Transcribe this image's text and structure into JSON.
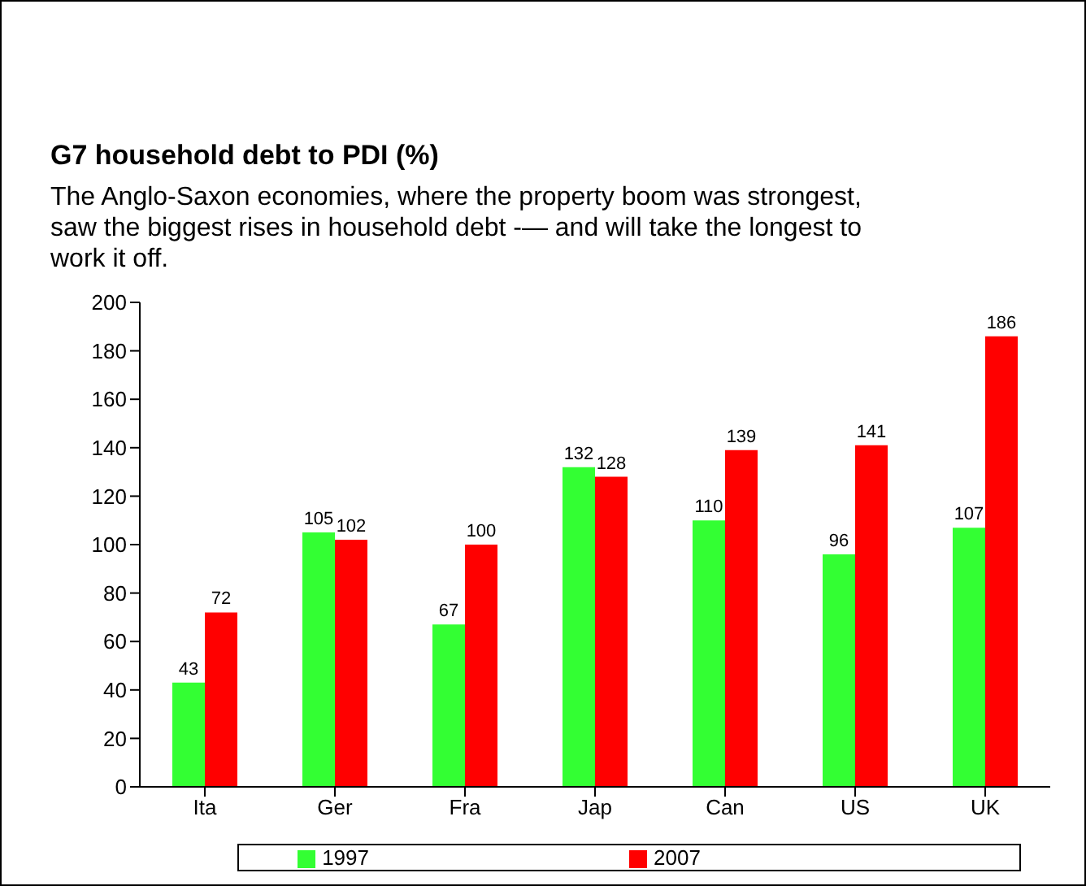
{
  "chart_data": {
    "type": "bar",
    "title": "G7 household debt to PDI (%)",
    "subtitle": "The Anglo-Saxon economies, where the property boom was strongest, saw the biggest rises in household debt -— and will take the longest to work it off.",
    "categories": [
      "Ita",
      "Ger",
      "Fra",
      "Jap",
      "Can",
      "US",
      "UK"
    ],
    "series": [
      {
        "name": "1997",
        "color": "#33ff33",
        "values": [
          43,
          105,
          67,
          132,
          110,
          96,
          107
        ]
      },
      {
        "name": "2007",
        "color": "#ff0000",
        "values": [
          72,
          102,
          100,
          128,
          139,
          141,
          186
        ]
      }
    ],
    "ylim": [
      0,
      200
    ],
    "yticks": [
      0,
      20,
      40,
      60,
      80,
      100,
      120,
      140,
      160,
      180,
      200
    ],
    "legend": "bottom",
    "data_labels": true
  }
}
